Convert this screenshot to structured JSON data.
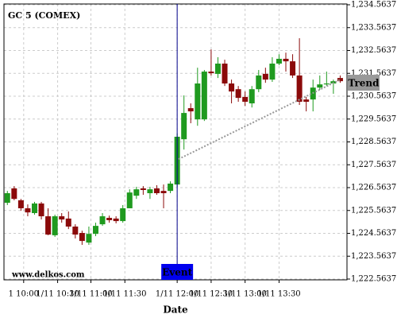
{
  "chart_data": {
    "type": "candlestick",
    "title": "GC 5 (COMEX)",
    "watermark": "www.delkos.com",
    "xlabel": "Date",
    "open": [
      1225.9,
      1226.53,
      1226.01,
      1225.66,
      1225.45,
      1225.87,
      1225.31,
      1224.48,
      1225.31,
      1225.21,
      1224.86,
      1224.58,
      1224.16,
      1224.54,
      1224.96,
      1225.24,
      1225.21,
      1225.1,
      1225.66,
      1226.21,
      1226.53,
      1226.32,
      1226.53,
      1226.42,
      1226.42,
      1226.7,
      1228.68,
      1230.04,
      1229.55,
      1229.55,
      1231.64,
      1231.54,
      1231.99,
      1231.12,
      1230.87,
      1230.53,
      1230.25,
      1230.87,
      1231.54,
      1231.29,
      1231.99,
      1232.2,
      1232.09,
      1231.47,
      1230.42,
      1230.42,
      1230.94,
      1231.08,
      1231.12,
      1231.36
    ],
    "high": [
      1226.42,
      1226.63,
      1226.07,
      1225.83,
      1225.94,
      1225.94,
      1225.66,
      1225.38,
      1225.45,
      1225.52,
      1224.96,
      1224.68,
      1224.86,
      1225.03,
      1225.45,
      1225.34,
      1225.31,
      1225.8,
      1226.49,
      1226.6,
      1226.63,
      1226.6,
      1226.67,
      1226.7,
      1226.84,
      1228.93,
      1230.6,
      1230.25,
      1231.81,
      1231.71,
      1232.61,
      1232.27,
      1232.16,
      1231.29,
      1231.01,
      1230.77,
      1231.01,
      1231.71,
      1231.81,
      1232.27,
      1232.4,
      1232.47,
      1232.4,
      1233.1,
      1230.53,
      1231.29,
      1231.47,
      1231.64,
      1231.29,
      1231.47
    ],
    "low": [
      1225.8,
      1226.01,
      1225.55,
      1225.31,
      1225.38,
      1225.17,
      1224.48,
      1224.41,
      1225.03,
      1224.75,
      1224.34,
      1224.06,
      1224.06,
      1224.44,
      1224.89,
      1225.03,
      1225.0,
      1225.03,
      1225.66,
      1226.07,
      1226.25,
      1226.07,
      1226.25,
      1225.66,
      1226.32,
      1226.6,
      1228.23,
      1229.38,
      1229.27,
      1229.48,
      1231.47,
      1231.36,
      1231.01,
      1230.25,
      1230.32,
      1230.14,
      1230.07,
      1230.74,
      1231.15,
      1231.19,
      1231.92,
      1231.64,
      1231.36,
      1230.18,
      1229.9,
      1229.9,
      1230.84,
      1231.01,
      1230.67,
      1231.15
    ],
    "close": [
      1226.32,
      1226.07,
      1225.66,
      1225.48,
      1225.87,
      1225.31,
      1224.51,
      1225.31,
      1225.17,
      1224.86,
      1224.51,
      1224.23,
      1224.54,
      1224.89,
      1225.31,
      1225.14,
      1225.1,
      1225.66,
      1226.35,
      1226.49,
      1226.46,
      1226.49,
      1226.32,
      1226.32,
      1226.74,
      1228.79,
      1229.83,
      1229.9,
      1231.12,
      1231.64,
      1231.57,
      1231.99,
      1231.12,
      1230.77,
      1230.49,
      1230.32,
      1230.87,
      1231.47,
      1231.29,
      1231.99,
      1232.2,
      1232.09,
      1231.47,
      1230.32,
      1230.32,
      1230.94,
      1231.08,
      1231.12,
      1231.22,
      1231.22
    ],
    "up_color": "#1f9a1f",
    "down_color": "#8b0a0a",
    "xlim": [
      -0.5,
      50
    ],
    "xticks": [
      {
        "value": 2.4,
        "label": "1 10:00"
      },
      {
        "value": 7.4,
        "label": "1/11 10:30"
      },
      {
        "value": 12.3,
        "label": "1/11 11:00"
      },
      {
        "value": 17.3,
        "label": "1/11 11:30"
      },
      {
        "value": 25,
        "label": "1/11 12:00"
      },
      {
        "value": 30,
        "label": "1/11 12:30"
      },
      {
        "value": 35,
        "label": "1/11 13:00"
      },
      {
        "value": 40,
        "label": "1/11 13:30"
      }
    ],
    "ylim": [
      1222.5637,
      1234.5637
    ],
    "yticks": [
      {
        "value": 1222.5637,
        "label": "1,222.5637"
      },
      {
        "value": 1223.5637,
        "label": "1,223.5637"
      },
      {
        "value": 1224.5637,
        "label": "1,224.5637"
      },
      {
        "value": 1225.5637,
        "label": "1,225.5637"
      },
      {
        "value": 1226.5637,
        "label": "1,226.5637"
      },
      {
        "value": 1227.5637,
        "label": "1,227.5637"
      },
      {
        "value": 1228.5637,
        "label": "1,228.5637"
      },
      {
        "value": 1229.5637,
        "label": "1,229.5637"
      },
      {
        "value": 1230.5637,
        "label": "1,230.5637"
      },
      {
        "value": 1231.5637,
        "label": "1,231.5637"
      },
      {
        "value": 1232.5637,
        "label": "1,232.5637"
      },
      {
        "value": 1233.5637,
        "label": "1,233.5637"
      },
      {
        "value": 1234.5637,
        "label": "1,234.5637"
      }
    ],
    "grid": true,
    "event": {
      "label": "Event",
      "x": 25,
      "color": "#0000ee"
    },
    "trend": {
      "label": "Trend",
      "x": [
        25.2,
        49
      ],
      "y": [
        1227.81,
        1231.29
      ],
      "color": "#999999"
    }
  }
}
